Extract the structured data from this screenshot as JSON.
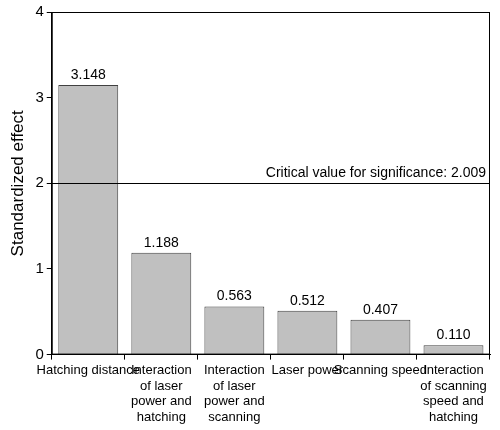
{
  "chart_data": {
    "type": "bar",
    "y_label": "Standardized effect",
    "categories": [
      "Hatching distance",
      "Interaction of laser power and hatching",
      "Interaction of laser power and scanning",
      "Laser power",
      "Scanning speed",
      "Interaction of scanning speed and hatching"
    ],
    "values": [
      3.148,
      1.188,
      0.563,
      0.512,
      0.407,
      0.11
    ],
    "value_labels": [
      "3.148",
      "1.188",
      "0.563",
      "0.512",
      "0.407",
      "0.110"
    ],
    "data_labels": true,
    "color": "#c0c0c0",
    "ylim": [
      0,
      4
    ],
    "yticks": [
      0,
      1,
      2,
      3,
      4
    ],
    "grid": false,
    "annotations": [
      {
        "text": "Critical value for significance: 2.009",
        "y": 2.009
      }
    ]
  }
}
